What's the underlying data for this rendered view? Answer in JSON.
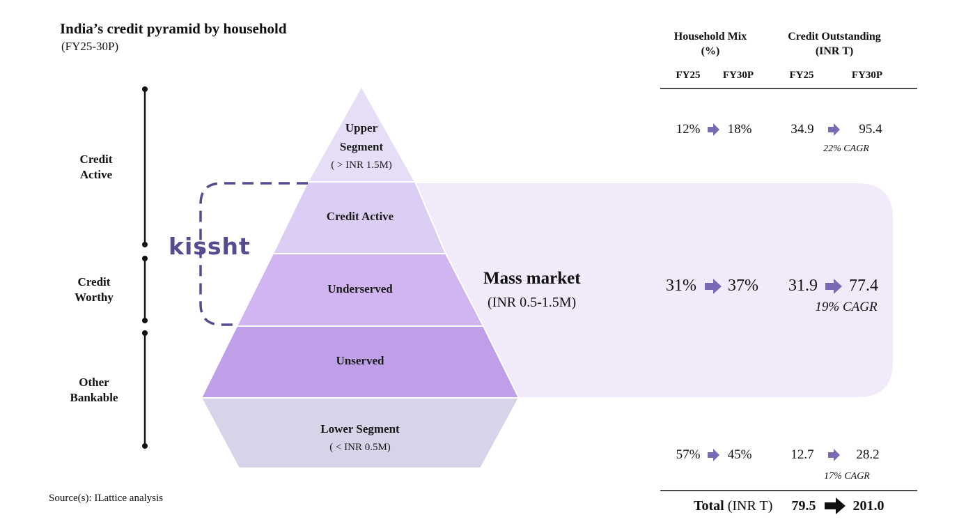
{
  "title": "India’s credit pyramid by household",
  "subtitle": "(FY25-30P)",
  "source": "Source(s): ILattice analysis",
  "categories": {
    "credit_active": [
      "Credit",
      "Active"
    ],
    "credit_worthy": [
      "Credit",
      "Worthy"
    ],
    "other_bankable": [
      "Other",
      "Bankable"
    ]
  },
  "pyramid": {
    "upper": {
      "line1": "Upper",
      "line2": "Segment",
      "sub": "( > INR 1.5M)"
    },
    "credit_active": "Credit Active",
    "underserved": "Underserved",
    "unserved": "Unserved",
    "lower": {
      "label": "Lower Segment",
      "sub": "( < INR 0.5M)"
    }
  },
  "mass_market": {
    "title": "Mass market",
    "sub": "(INR 0.5-1.5M)"
  },
  "logo_text": "kissht",
  "table": {
    "household_mix_header": [
      "Household Mix",
      "(%)"
    ],
    "credit_outstanding_header": [
      "Credit Outstanding",
      "(INR T)"
    ],
    "col_fy25": "FY25",
    "col_fy30p": "FY30P",
    "rows": [
      {
        "mix_fy25": "12%",
        "mix_fy30p": "18%",
        "credit_fy25": "34.9",
        "credit_fy30p": "95.4",
        "cagr": "22% CAGR"
      },
      {
        "mix_fy25": "31%",
        "mix_fy30p": "37%",
        "credit_fy25": "31.9",
        "credit_fy30p": "77.4",
        "cagr": "19% CAGR"
      },
      {
        "mix_fy25": "57%",
        "mix_fy30p": "45%",
        "credit_fy25": "12.7",
        "credit_fy30p": "28.2",
        "cagr": "17% CAGR"
      }
    ],
    "total": {
      "label": "Total",
      "unit": "(INR T)",
      "fy25": "79.5",
      "fy30p": "201.0"
    }
  },
  "colors": {
    "upper": "#e6ddf7",
    "credit_active": "#dccdf5",
    "underserved": "#d0b5f0",
    "unserved": "#bfa0e8",
    "lower": "#d8d3e8",
    "mass_panel": "#f0eafb",
    "arrow": "#7a6ab5",
    "dash": "#574b90"
  }
}
